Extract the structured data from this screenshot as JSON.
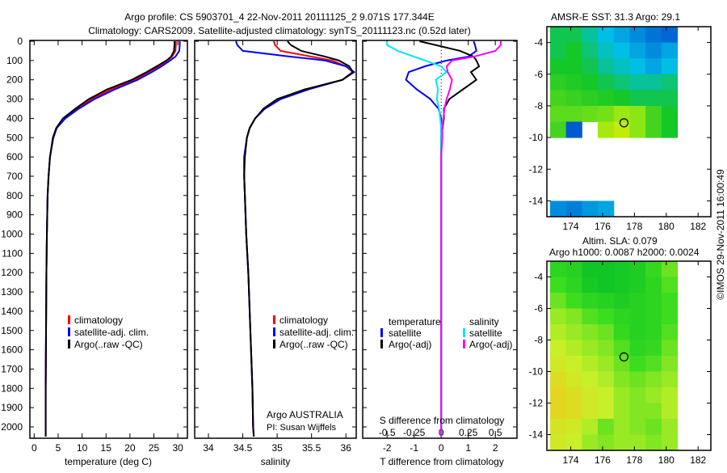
{
  "title_line1": "Argo profile: CS 5903701_4 22-Nov-2011 20111125_2 9.071S 177.344E",
  "title_line2": "Climatology: CARS2009. Satellite-adjusted climatology: synTS_20111123.nc (0.52d later)",
  "footer_stamp": "©IMOS 29-Nov-2011 16:00:49",
  "colors": {
    "climatology": "#ff0000",
    "satellite": "#0000ff",
    "argo": "#000000",
    "sal_satellite": "#00e5ff",
    "sal_argo": "#ff00ff"
  },
  "chart_data": [
    {
      "type": "line",
      "id": "temperature",
      "xlabel": "temperature (deg C)",
      "ylabel": "depth",
      "xlim": [
        -0.9,
        32
      ],
      "ylim": [
        2060,
        0
      ],
      "xticks": [
        "0",
        "5",
        "10",
        "15",
        "20",
        "25",
        "30"
      ],
      "xtick_values": [
        0,
        5,
        10,
        15,
        20,
        25,
        30
      ],
      "yticks": [
        "0",
        "100",
        "200",
        "300",
        "400",
        "500",
        "600",
        "700",
        "800",
        "900",
        "1000",
        "1100",
        "1200",
        "1300",
        "1400",
        "1500",
        "1600",
        "1700",
        "1800",
        "1900",
        "2000"
      ],
      "depth": [
        0,
        20,
        50,
        80,
        100,
        130,
        160,
        200,
        250,
        300,
        350,
        400,
        450,
        500,
        600,
        700,
        800,
        1000,
        1200,
        1400,
        1600,
        1800,
        2000,
        2050
      ],
      "legend": [
        "climatology",
        "satellite-adj. clim.",
        "Argo(..raw -QC)"
      ],
      "legend_position": "lower-middle",
      "series": [
        {
          "name": "climatology",
          "color": "#ff0000",
          "values": [
            29.6,
            29.6,
            29.5,
            28.8,
            27.8,
            26.0,
            24.0,
            21.0,
            16.0,
            12.0,
            9.0,
            6.4,
            4.7,
            4.0,
            3.3,
            3.0,
            2.8,
            2.65,
            2.55,
            2.5,
            2.45,
            2.4,
            2.4,
            2.4
          ]
        },
        {
          "name": "satellite-adj. clim.",
          "color": "#0000ff",
          "values": [
            30.4,
            30.4,
            30.3,
            29.5,
            28.4,
            26.6,
            24.6,
            21.6,
            16.8,
            12.6,
            9.3,
            6.5,
            4.7,
            4.0,
            3.3,
            3.0,
            2.8,
            2.65,
            2.55,
            2.5,
            2.45,
            2.4,
            2.4,
            2.4
          ]
        },
        {
          "name": "Argo(..raw -QC)",
          "color": "#000000",
          "values": [
            29.3,
            29.3,
            29.2,
            28.6,
            27.6,
            25.6,
            23.5,
            20.4,
            15.2,
            11.4,
            8.6,
            6.0,
            4.6,
            3.9,
            3.3,
            3.0,
            2.8,
            2.65,
            2.55,
            2.5,
            2.45,
            2.4,
            2.4,
            2.4
          ]
        }
      ]
    },
    {
      "type": "line",
      "id": "salinity",
      "xlabel": "salinity",
      "xlim": [
        33.8,
        36.15
      ],
      "ylim": [
        2060,
        0
      ],
      "xticks": [
        "34",
        "34.5",
        "35",
        "35.5",
        "36"
      ],
      "xtick_values": [
        34,
        34.5,
        35,
        35.5,
        36
      ],
      "depth": [
        0,
        20,
        50,
        80,
        100,
        130,
        160,
        200,
        250,
        300,
        350,
        400,
        450,
        500,
        600,
        700,
        800,
        1000,
        1200,
        1400,
        1600,
        1800,
        2000,
        2050
      ],
      "legend": [
        "climatology",
        "satellite-adj. clim.",
        "Argo(..raw -QC)"
      ],
      "annotation": [
        "Argo AUSTRALIA",
        "PI: Susan Wijffels"
      ],
      "series": [
        {
          "name": "climatology",
          "color": "#ff0000",
          "values": [
            34.95,
            34.97,
            35.05,
            35.5,
            35.8,
            36.0,
            36.1,
            35.95,
            35.45,
            35.05,
            34.82,
            34.68,
            34.6,
            34.56,
            34.52,
            34.52,
            34.53,
            34.55,
            34.58,
            34.6,
            34.62,
            34.64,
            34.65,
            34.66
          ]
        },
        {
          "name": "satellite-adj. clim.",
          "color": "#0000ff",
          "values": [
            34.4,
            34.42,
            34.5,
            35.2,
            35.7,
            36.0,
            36.12,
            35.95,
            35.45,
            35.05,
            34.82,
            34.68,
            34.6,
            34.56,
            34.52,
            34.52,
            34.53,
            34.55,
            34.58,
            34.6,
            34.62,
            34.64,
            34.65,
            34.66
          ]
        },
        {
          "name": "Argo(..raw -QC)",
          "color": "#000000",
          "values": [
            35.15,
            35.2,
            35.35,
            35.7,
            35.9,
            36.05,
            36.1,
            35.95,
            35.4,
            35.0,
            34.8,
            34.68,
            34.6,
            34.56,
            34.53,
            34.52,
            34.53,
            34.55,
            34.58,
            34.6,
            34.62,
            34.64,
            34.65,
            34.66
          ]
        }
      ]
    },
    {
      "type": "line",
      "id": "difference",
      "xlabel": "T difference from climatology",
      "x2label": "S difference from climatology",
      "xlim": [
        -2.9,
        2.8
      ],
      "x2lim": [
        -0.725,
        0.7
      ],
      "xticks": [
        "-2",
        "-1",
        "0",
        "1",
        "2"
      ],
      "xtick_values": [
        -2,
        -1,
        0,
        1,
        2
      ],
      "x2ticks": [
        "-0.5",
        "-0.25",
        "0",
        "0.25",
        "0.5"
      ],
      "x2tick_values": [
        -0.5,
        -0.25,
        0,
        0.25,
        0.5
      ],
      "depth": [
        0,
        20,
        50,
        80,
        100,
        130,
        160,
        200,
        250,
        300,
        350,
        400,
        450,
        500,
        600,
        700,
        800,
        1000,
        1200,
        1400,
        1600,
        1800,
        2000,
        2050
      ],
      "legend_headers": [
        "temperature",
        "salinity"
      ],
      "legend": [
        "satellite",
        "Argo(-adj)",
        "satellite",
        "Argo(-adj)"
      ],
      "series": [
        {
          "name": "T satellite",
          "axis": "T",
          "color": "#0000ff",
          "values": [
            1.2,
            1.25,
            1.3,
            1.0,
            0.2,
            -0.6,
            -1.2,
            -1.3,
            -0.9,
            -0.4,
            -0.1,
            0,
            0,
            0,
            0,
            0,
            0,
            0,
            0,
            0,
            0,
            0,
            0,
            0
          ]
        },
        {
          "name": "T Argo(-adj)",
          "axis": "T",
          "color": "#000000",
          "values": [
            -0.8,
            -0.2,
            0.7,
            1.2,
            1.3,
            1.4,
            1.1,
            1.3,
            0.8,
            0.3,
            0.1,
            0.1,
            0.05,
            0,
            0,
            0,
            0,
            0,
            0,
            0,
            0,
            0,
            0,
            0
          ]
        },
        {
          "name": "S satellite",
          "axis": "S",
          "color": "#00e5ff",
          "values": [
            -0.5,
            -0.5,
            -0.4,
            -0.25,
            -0.15,
            0,
            0.05,
            -0.05,
            -0.03,
            -0.04,
            -0.02,
            -0.01,
            0,
            0,
            0,
            0,
            0,
            0,
            0,
            0,
            0,
            0,
            0,
            0
          ]
        },
        {
          "name": "S Argo(-adj)",
          "axis": "S",
          "color": "#ff00ff",
          "values": [
            0.55,
            0.55,
            0.5,
            0.3,
            0.1,
            0.05,
            0.06,
            0.1,
            0.08,
            0.05,
            0.03,
            0.02,
            0.01,
            0.01,
            0,
            0,
            0,
            0,
            0,
            0,
            0,
            0,
            0,
            0
          ]
        }
      ]
    },
    {
      "type": "heatmap",
      "id": "sst_map",
      "title": "AMSR-E SST: 31.3 Argo: 29.1",
      "xlim": [
        172.5,
        182.8
      ],
      "ylim": [
        -15,
        -3
      ],
      "xticks": [
        "174",
        "176",
        "178",
        "180",
        "182"
      ],
      "xtick_values": [
        174,
        176,
        178,
        180,
        182
      ],
      "yticks": [
        "-4",
        "-6",
        "-8",
        "-10",
        "-12",
        "-14"
      ],
      "ytick_values": [
        -4,
        -6,
        -8,
        -10,
        -12,
        -14
      ],
      "cell_lon0": 172.7,
      "cell_lat0": -3,
      "cell_deg": 1,
      "color_range": [
        28,
        32
      ],
      "values": [
        [
          30.0,
          30.0,
          29.6,
          29.2,
          29.0,
          28.8,
          28.6,
          28.5
        ],
        [
          30.0,
          30.2,
          29.8,
          29.4,
          29.2,
          29.0,
          28.8,
          29.0
        ],
        [
          30.2,
          30.2,
          30.0,
          29.6,
          29.4,
          29.2,
          29.0,
          29.2
        ],
        [
          30.4,
          30.3,
          30.2,
          30.0,
          29.8,
          29.6,
          29.6,
          29.8
        ],
        [
          30.6,
          30.5,
          30.4,
          30.3,
          30.2,
          30.0,
          30.0,
          30.0
        ],
        [
          30.8,
          30.8,
          30.9,
          31.0,
          31.3,
          31.2,
          30.6,
          30.2
        ],
        [
          30.6,
          28.4,
          null,
          31.4,
          31.6,
          31.2,
          30.6,
          30.2
        ],
        [
          null,
          null,
          null,
          null,
          null,
          null,
          null,
          null
        ],
        [
          null,
          null,
          null,
          null,
          null,
          null,
          null,
          null
        ],
        [
          null,
          null,
          null,
          null,
          null,
          null,
          null,
          null
        ],
        [
          null,
          null,
          null,
          null,
          null,
          null,
          null,
          null
        ],
        [
          28.8,
          28.7,
          28.9,
          29.0,
          null,
          null,
          null,
          null
        ]
      ],
      "marker": {
        "lon": 177.344,
        "lat": -9.071
      }
    },
    {
      "type": "heatmap",
      "id": "sla_map",
      "title": [
        "Altim. SLA: 0.079",
        "Argo h1000: 0.0087 h2000: 0.0024"
      ],
      "xlim": [
        172.5,
        182.8
      ],
      "ylim": [
        -15,
        -3
      ],
      "xticks": [
        "174",
        "176",
        "178",
        "180",
        "182"
      ],
      "xtick_values": [
        174,
        176,
        178,
        180,
        182
      ],
      "yticks": [
        "-4",
        "-6",
        "-8",
        "-10",
        "-12",
        "-14"
      ],
      "ytick_values": [
        -4,
        -6,
        -8,
        -10,
        -12,
        -14
      ],
      "cell_lon0": 172.7,
      "cell_lat0": -3,
      "cell_deg": 1,
      "color_range": [
        0,
        0.2
      ],
      "values": [
        [
          0.06,
          0.05,
          0.02,
          0.02,
          0.03,
          0.04,
          0.07,
          0.1
        ],
        [
          0.08,
          0.06,
          0.03,
          0.02,
          0.03,
          0.04,
          0.06,
          0.09
        ],
        [
          0.1,
          0.08,
          0.06,
          0.05,
          0.04,
          0.05,
          0.06,
          0.08
        ],
        [
          0.12,
          0.11,
          0.09,
          0.08,
          0.06,
          0.05,
          0.06,
          0.08
        ],
        [
          0.13,
          0.12,
          0.11,
          0.1,
          0.07,
          0.05,
          0.06,
          0.09
        ],
        [
          0.14,
          0.13,
          0.12,
          0.11,
          0.09,
          0.06,
          0.07,
          0.1
        ],
        [
          0.15,
          0.14,
          0.13,
          0.12,
          0.1,
          0.08,
          0.09,
          0.11
        ],
        [
          0.17,
          0.15,
          0.14,
          0.13,
          0.11,
          0.1,
          0.11,
          0.12
        ],
        [
          0.18,
          0.17,
          0.15,
          0.14,
          0.12,
          0.11,
          0.12,
          0.13
        ],
        [
          0.18,
          0.17,
          0.15,
          0.14,
          0.12,
          0.11,
          0.11,
          0.13
        ],
        [
          0.16,
          0.15,
          0.13,
          0.1,
          0.12,
          0.11,
          0.1,
          0.12
        ],
        [
          0.15,
          0.14,
          0.12,
          0.11,
          0.12,
          0.12,
          0.11,
          0.12
        ]
      ],
      "marker": {
        "lon": 177.344,
        "lat": -9.071
      }
    }
  ]
}
